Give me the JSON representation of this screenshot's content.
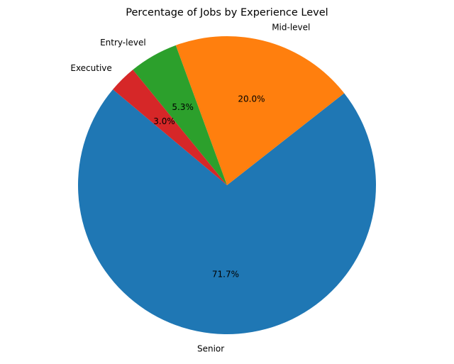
{
  "chart_data": {
    "type": "pie",
    "title": "Percentage of Jobs by Experience Level",
    "labels": [
      "Senior",
      "Mid-level",
      "Entry-level",
      "Executive"
    ],
    "values": [
      71.7,
      20.0,
      5.3,
      3.0
    ],
    "percent_labels": [
      "71.7%",
      "20.0%",
      "5.3%",
      "3.0%"
    ],
    "colors": [
      "#1f77b4",
      "#ff7f0e",
      "#2ca02c",
      "#d62728"
    ],
    "start_angle_deg": 140,
    "direction": "counterclockwise",
    "legend": "none"
  }
}
